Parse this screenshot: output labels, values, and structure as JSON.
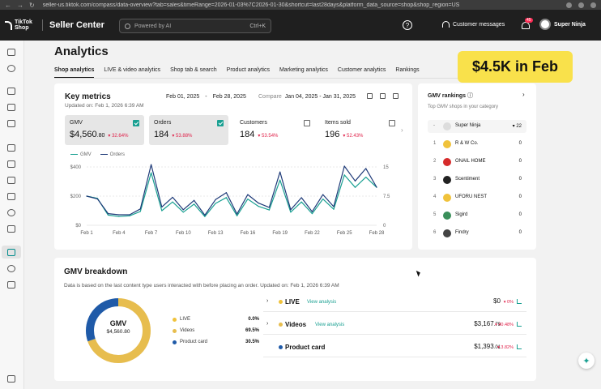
{
  "browser": {
    "url": "seller-us.tiktok.com/compass/data-overview?tab=sales&timeRange=2026-01-03%7C2026-01-30&shortcut=last28days&platform_data_source=shop&shop_region=US"
  },
  "header": {
    "logo_text": "TikTok Shop",
    "app_name": "Seller Center",
    "search_placeholder": "Powered by AI",
    "search_shortcut": "Ctrl+K",
    "help_glyph": "?",
    "messages_label": "Customer messages",
    "notification_count": "45",
    "user_name": "Super Ninja"
  },
  "page": {
    "title": "Analytics",
    "tabs": [
      {
        "label": "Shop analytics"
      },
      {
        "label": "LIVE & video analytics"
      },
      {
        "label": "Shop tab & search"
      },
      {
        "label": "Product analytics"
      },
      {
        "label": "Marketing analytics"
      },
      {
        "label": "Customer analytics"
      },
      {
        "label": "Rankings"
      }
    ],
    "overlay_caption": "$4.5K in Feb"
  },
  "key_metrics": {
    "title": "Key metrics",
    "updated": "Updated on: Feb 1, 2026 6:39 AM",
    "date_start": "Feb 01, 2025",
    "date_end": "Feb 28, 2025",
    "compare_label": "Compare",
    "compare_range": "Jan 04, 2025 - Jan 31, 2025",
    "metrics": [
      {
        "name": "GMV",
        "value": "$4,560",
        "value_cents": ".80",
        "change": "32.64%",
        "selected": true
      },
      {
        "name": "Orders",
        "value": "184",
        "value_cents": "",
        "change": "53.88%",
        "selected": true
      },
      {
        "name": "Customers",
        "value": "184",
        "value_cents": "",
        "change": "53.54%",
        "selected": false
      },
      {
        "name": "Items sold",
        "value": "196",
        "value_cents": "",
        "change": "52.43%",
        "selected": false
      }
    ]
  },
  "chart_data": {
    "type": "line",
    "x": [
      "Feb 1",
      "Feb 2",
      "Feb 3",
      "Feb 4",
      "Feb 5",
      "Feb 6",
      "Feb 7",
      "Feb 8",
      "Feb 9",
      "Feb 10",
      "Feb 11",
      "Feb 12",
      "Feb 13",
      "Feb 14",
      "Feb 15",
      "Feb 16",
      "Feb 17",
      "Feb 18",
      "Feb 19",
      "Feb 20",
      "Feb 21",
      "Feb 22",
      "Feb 23",
      "Feb 24",
      "Feb 25",
      "Feb 26",
      "Feb 27",
      "Feb 28"
    ],
    "xticks": [
      "Feb 1",
      "Feb 4",
      "Feb 7",
      "Feb 10",
      "Feb 13",
      "Feb 16",
      "Feb 19",
      "Feb 22",
      "Feb 25",
      "Feb 28"
    ],
    "series": [
      {
        "name": "GMV",
        "axis": "left",
        "color": "#1aa092",
        "values": [
          200,
          185,
          70,
          60,
          65,
          95,
          360,
          100,
          160,
          90,
          145,
          60,
          150,
          190,
          65,
          180,
          130,
          105,
          310,
          90,
          160,
          80,
          180,
          110,
          345,
          260,
          330,
          260
        ]
      },
      {
        "name": "Orders",
        "axis": "right",
        "color": "#1e3a78",
        "values": [
          7.5,
          6.8,
          3.0,
          2.7,
          2.7,
          4.2,
          15.6,
          4.7,
          7.2,
          4.0,
          6.4,
          2.6,
          6.6,
          8.4,
          2.9,
          7.9,
          5.7,
          4.6,
          13.7,
          4.0,
          7.1,
          3.5,
          7.9,
          4.8,
          15.2,
          11.4,
          14.6,
          9.8
        ]
      }
    ],
    "yleft_ticks": [
      "$0",
      "$200",
      "$400"
    ],
    "yleft_lim": [
      0,
      400
    ],
    "yright_ticks": [
      "0",
      "7.5",
      "15"
    ],
    "yright_lim": [
      0,
      15
    ],
    "grid": true,
    "legend": "top-left"
  },
  "rankings": {
    "title": "GMV rankings",
    "subtitle": "Top GMV shops in your category",
    "items": [
      {
        "rank": "-",
        "name": "Super Ninja",
        "score": "22",
        "trend": "▾",
        "color": "#dddddd",
        "me": true
      },
      {
        "rank": "1",
        "name": "R & W Co.",
        "score": "0",
        "color": "#f0c23b"
      },
      {
        "rank": "2",
        "name": "ONAIL HOME",
        "score": "0",
        "color": "#d62b2b"
      },
      {
        "rank": "3",
        "name": "Scentiment",
        "score": "0",
        "color": "#222222"
      },
      {
        "rank": "4",
        "name": "UFORU NEST",
        "score": "0",
        "color": "#f0c23b"
      },
      {
        "rank": "5",
        "name": "Sigird",
        "score": "0",
        "color": "#3a8f5a"
      },
      {
        "rank": "6",
        "name": "Findry",
        "score": "0",
        "color": "#444444"
      }
    ]
  },
  "breakdown": {
    "title": "GMV breakdown",
    "subtitle": "Data is based on the last content type users interacted with before placing an order.  Updated on: Feb 1, 2026 6:39 AM",
    "total_label": "GMV",
    "total_value": "$4,560.80",
    "segments": [
      {
        "name": "LIVE",
        "pct": "0.0%",
        "fraction": 0.0,
        "color": "#f0c23b",
        "amount": "$0",
        "amount_cents": "",
        "change": "▾ 0%",
        "link": "View analysis",
        "expandable": true
      },
      {
        "name": "Videos",
        "pct": "69.5%",
        "fraction": 0.695,
        "color": "#e7bd4e",
        "amount": "$3,167",
        "amount_cents": ".79",
        "change": "▾ 40.48%",
        "link": "View analysis",
        "expandable": true
      },
      {
        "name": "Product card",
        "pct": "30.5%",
        "fraction": 0.305,
        "color": "#1f5aa8",
        "amount": "$1,393",
        "amount_cents": ".01",
        "change": "▾ 3.82%",
        "link": "",
        "expandable": false
      }
    ]
  },
  "fab_glyph": "✦"
}
